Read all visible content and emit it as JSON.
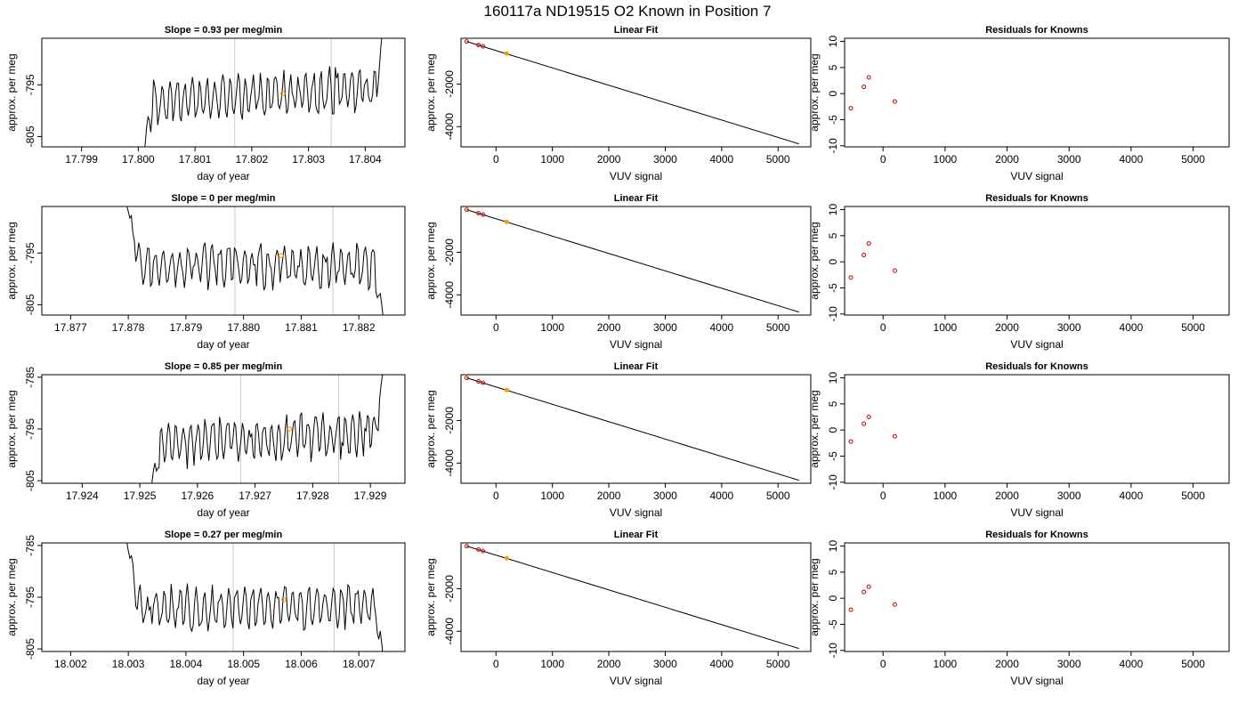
{
  "title": "160117a     ND19515   O2 Known in Position  7",
  "colors": {
    "trace": "#000000",
    "guide": "#c8c8c8",
    "known_point": "#cc0000",
    "highlight": "#ff9900",
    "fit_line": "#000000"
  },
  "chart_data": [
    {
      "type": "line",
      "panel": "time-series-1",
      "title": "Slope =  0.93  per meg/min",
      "xlabel": "day of year",
      "ylabel": "approx. per meg",
      "xlim": [
        17.7983,
        17.8047
      ],
      "ylim": [
        -807,
        -786
      ],
      "x_ticks": [
        "17.799",
        "17.800",
        "17.801",
        "17.802",
        "17.803",
        "17.804"
      ],
      "x_tick_values": [
        17.799,
        17.8,
        17.801,
        17.802,
        17.803,
        17.804
      ],
      "y_ticks": [
        "-795",
        "-805"
      ],
      "y_tick_values": [
        -795,
        -805
      ],
      "guide_lines_x": [
        17.8017,
        17.8034
      ],
      "trace_start": 17.8,
      "trace_end": 17.8044,
      "entry_edge": "bottom",
      "exit_edge": "top",
      "trace_mean": -797,
      "trace_amplitude": 4.5,
      "trace_trend": 0.93,
      "highlight_point": {
        "x": 17.80255,
        "y": -796.7
      }
    },
    {
      "type": "line",
      "panel": "time-series-2",
      "title": "Slope =  0  per meg/min",
      "xlabel": "day of year",
      "ylabel": "approx. per meg",
      "xlim": [
        17.8765,
        17.8828
      ],
      "ylim": [
        -807,
        -786
      ],
      "x_ticks": [
        "17.877",
        "17.878",
        "17.879",
        "17.880",
        "17.881",
        "17.882"
      ],
      "x_tick_values": [
        17.877,
        17.878,
        17.879,
        17.88,
        17.881,
        17.882
      ],
      "y_ticks": [
        "-795",
        "-805"
      ],
      "y_tick_values": [
        -795,
        -805
      ],
      "guide_lines_x": [
        17.87985,
        17.88155
      ],
      "trace_start": 17.8779,
      "trace_end": 17.8825,
      "entry_edge": "top",
      "exit_edge": "bottom",
      "trace_mean": -797.5,
      "trace_amplitude": 4.5,
      "trace_trend": 0,
      "highlight_point": {
        "x": 17.88065,
        "y": -795.5
      }
    },
    {
      "type": "line",
      "panel": "time-series-3",
      "title": "Slope =  0.85  per meg/min",
      "xlabel": "day of year",
      "ylabel": "approx. per meg",
      "xlim": [
        17.9233,
        17.9296
      ],
      "ylim": [
        -805.5,
        -784.5
      ],
      "x_ticks": [
        "17.924",
        "17.925",
        "17.926",
        "17.927",
        "17.928",
        "17.929"
      ],
      "x_tick_values": [
        17.924,
        17.925,
        17.926,
        17.927,
        17.928,
        17.929
      ],
      "y_ticks": [
        "-785",
        "-795",
        "-805"
      ],
      "y_tick_values": [
        -785,
        -795,
        -805
      ],
      "guide_lines_x": [
        17.92675,
        17.92845
      ],
      "trace_start": 17.9251,
      "trace_end": 17.9293,
      "entry_edge": "bottom",
      "exit_edge": "top",
      "trace_mean": -797,
      "trace_amplitude": 4.5,
      "trace_trend": 0.85,
      "highlight_point": {
        "x": 17.9276,
        "y": -795
      }
    },
    {
      "type": "line",
      "panel": "time-series-4",
      "title": "Slope =  0.27  per meg/min",
      "xlabel": "day of year",
      "ylabel": "approx. per meg",
      "xlim": [
        18.0015,
        18.0078
      ],
      "ylim": [
        -805.5,
        -784.5
      ],
      "x_ticks": [
        "18.002",
        "18.003",
        "18.004",
        "18.005",
        "18.006",
        "18.007"
      ],
      "x_tick_values": [
        18.002,
        18.003,
        18.004,
        18.005,
        18.006,
        18.007
      ],
      "y_ticks": [
        "-785",
        "-795",
        "-805"
      ],
      "y_tick_values": [
        -785,
        -795,
        -805
      ],
      "guide_lines_x": [
        18.00482,
        18.00657
      ],
      "trace_start": 18.0029,
      "trace_end": 18.0075,
      "entry_edge": "top",
      "exit_edge": "bottom",
      "trace_mean": -797,
      "trace_amplitude": 4.5,
      "trace_trend": 0.27,
      "highlight_point": {
        "x": 18.0057,
        "y": -795.5
      }
    },
    {
      "type": "scatter",
      "panel": "linear-fit-1",
      "title": "Linear Fit",
      "xlabel": "VUV signal",
      "ylabel": "approx. per meg",
      "xlim": [
        -620,
        5580
      ],
      "ylim": [
        -4950,
        150
      ],
      "x_ticks": [
        "0",
        "1000",
        "2000",
        "3000",
        "4000",
        "5000"
      ],
      "x_tick_values": [
        0,
        1000,
        2000,
        3000,
        4000,
        5000
      ],
      "y_ticks": [
        "-2000",
        "-4000"
      ],
      "y_tick_values": [
        -2000,
        -4000
      ],
      "fit_line": {
        "x": [
          -520,
          5370
        ],
        "y": [
          0,
          -4810
        ]
      },
      "known_points": [
        {
          "x": -520,
          "y": 0
        },
        {
          "x": -310,
          "y": -165
        },
        {
          "x": -230,
          "y": -230
        }
      ],
      "highlight_point": {
        "x": 190,
        "y": -570
      }
    },
    {
      "type": "scatter",
      "panel": "linear-fit-2",
      "title": "Linear Fit",
      "xlabel": "VUV signal",
      "ylabel": "approx. per meg",
      "xlim": [
        -620,
        5580
      ],
      "ylim": [
        -4950,
        150
      ],
      "x_ticks": [
        "0",
        "1000",
        "2000",
        "3000",
        "4000",
        "5000"
      ],
      "x_tick_values": [
        0,
        1000,
        2000,
        3000,
        4000,
        5000
      ],
      "y_ticks": [
        "-2000",
        "-4000"
      ],
      "y_tick_values": [
        -2000,
        -4000
      ],
      "fit_line": {
        "x": [
          -520,
          5370
        ],
        "y": [
          0,
          -4810
        ]
      },
      "known_points": [
        {
          "x": -520,
          "y": 0
        },
        {
          "x": -310,
          "y": -165
        },
        {
          "x": -230,
          "y": -230
        }
      ],
      "highlight_point": {
        "x": 190,
        "y": -570
      }
    },
    {
      "type": "scatter",
      "panel": "linear-fit-3",
      "title": "Linear Fit",
      "xlabel": "VUV signal",
      "ylabel": "approx. per meg",
      "xlim": [
        -620,
        5580
      ],
      "ylim": [
        -4950,
        150
      ],
      "x_ticks": [
        "0",
        "1000",
        "2000",
        "3000",
        "4000",
        "5000"
      ],
      "x_tick_values": [
        0,
        1000,
        2000,
        3000,
        4000,
        5000
      ],
      "y_ticks": [
        "-2000",
        "-4000"
      ],
      "y_tick_values": [
        -2000,
        -4000
      ],
      "fit_line": {
        "x": [
          -520,
          5370
        ],
        "y": [
          0,
          -4810
        ]
      },
      "known_points": [
        {
          "x": -520,
          "y": 0
        },
        {
          "x": -310,
          "y": -165
        },
        {
          "x": -230,
          "y": -230
        }
      ],
      "highlight_point": {
        "x": 190,
        "y": -570
      }
    },
    {
      "type": "scatter",
      "panel": "linear-fit-4",
      "title": "Linear Fit",
      "xlabel": "VUV signal",
      "ylabel": "approx. per meg",
      "xlim": [
        -620,
        5580
      ],
      "ylim": [
        -4950,
        150
      ],
      "x_ticks": [
        "0",
        "1000",
        "2000",
        "3000",
        "4000",
        "5000"
      ],
      "x_tick_values": [
        0,
        1000,
        2000,
        3000,
        4000,
        5000
      ],
      "y_ticks": [
        "-2000",
        "-4000"
      ],
      "y_tick_values": [
        -2000,
        -4000
      ],
      "fit_line": {
        "x": [
          -520,
          5370
        ],
        "y": [
          0,
          -4810
        ]
      },
      "known_points": [
        {
          "x": -520,
          "y": 0
        },
        {
          "x": -310,
          "y": -165
        },
        {
          "x": -230,
          "y": -230
        }
      ],
      "highlight_point": {
        "x": 190,
        "y": -570
      }
    },
    {
      "type": "scatter",
      "panel": "residuals-1",
      "title": "Residuals for Knowns",
      "xlabel": "VUV signal",
      "ylabel": "approx. per meg",
      "xlim": [
        -620,
        5580
      ],
      "ylim": [
        -10.2,
        10.6
      ],
      "x_ticks": [
        "0",
        "1000",
        "2000",
        "3000",
        "4000",
        "5000"
      ],
      "x_tick_values": [
        0,
        1000,
        2000,
        3000,
        4000,
        5000
      ],
      "y_ticks": [
        "-10",
        "-5",
        "0",
        "5",
        "10"
      ],
      "y_tick_values": [
        -10,
        -5,
        0,
        5,
        10
      ],
      "points": [
        {
          "x": -520,
          "y": -2.8
        },
        {
          "x": -310,
          "y": 1.3
        },
        {
          "x": -230,
          "y": 3.1
        },
        {
          "x": 190,
          "y": -1.5
        }
      ]
    },
    {
      "type": "scatter",
      "panel": "residuals-2",
      "title": "Residuals for Knowns",
      "xlabel": "VUV signal",
      "ylabel": "approx. per meg",
      "xlim": [
        -620,
        5580
      ],
      "ylim": [
        -10.2,
        10.6
      ],
      "x_ticks": [
        "0",
        "1000",
        "2000",
        "3000",
        "4000",
        "5000"
      ],
      "x_tick_values": [
        0,
        1000,
        2000,
        3000,
        4000,
        5000
      ],
      "y_ticks": [
        "-10",
        "-5",
        "0",
        "5",
        "10"
      ],
      "y_tick_values": [
        -10,
        -5,
        0,
        5,
        10
      ],
      "points": [
        {
          "x": -520,
          "y": -3.0
        },
        {
          "x": -310,
          "y": 1.3
        },
        {
          "x": -230,
          "y": 3.5
        },
        {
          "x": 190,
          "y": -1.7
        }
      ]
    },
    {
      "type": "scatter",
      "panel": "residuals-3",
      "title": "Residuals for Knowns",
      "xlabel": "VUV signal",
      "ylabel": "approx. per meg",
      "xlim": [
        -620,
        5580
      ],
      "ylim": [
        -10.2,
        10.6
      ],
      "x_ticks": [
        "0",
        "1000",
        "2000",
        "3000",
        "4000",
        "5000"
      ],
      "x_tick_values": [
        0,
        1000,
        2000,
        3000,
        4000,
        5000
      ],
      "y_ticks": [
        "-10",
        "-5",
        "0",
        "5",
        "10"
      ],
      "y_tick_values": [
        -10,
        -5,
        0,
        5,
        10
      ],
      "points": [
        {
          "x": -520,
          "y": -2.2
        },
        {
          "x": -310,
          "y": 1.2
        },
        {
          "x": -230,
          "y": 2.5
        },
        {
          "x": 190,
          "y": -1.2
        }
      ]
    },
    {
      "type": "scatter",
      "panel": "residuals-4",
      "title": "Residuals for Knowns",
      "xlabel": "VUV signal",
      "ylabel": "approx. per meg",
      "xlim": [
        -620,
        5580
      ],
      "ylim": [
        -10.2,
        10.6
      ],
      "x_ticks": [
        "0",
        "1000",
        "2000",
        "3000",
        "4000",
        "5000"
      ],
      "x_tick_values": [
        0,
        1000,
        2000,
        3000,
        4000,
        5000
      ],
      "y_ticks": [
        "-10",
        "-5",
        "0",
        "5",
        "10"
      ],
      "y_tick_values": [
        -10,
        -5,
        0,
        5,
        10
      ],
      "points": [
        {
          "x": -520,
          "y": -2.2
        },
        {
          "x": -310,
          "y": 1.2
        },
        {
          "x": -230,
          "y": 2.2
        },
        {
          "x": 190,
          "y": -1.2
        }
      ]
    }
  ]
}
